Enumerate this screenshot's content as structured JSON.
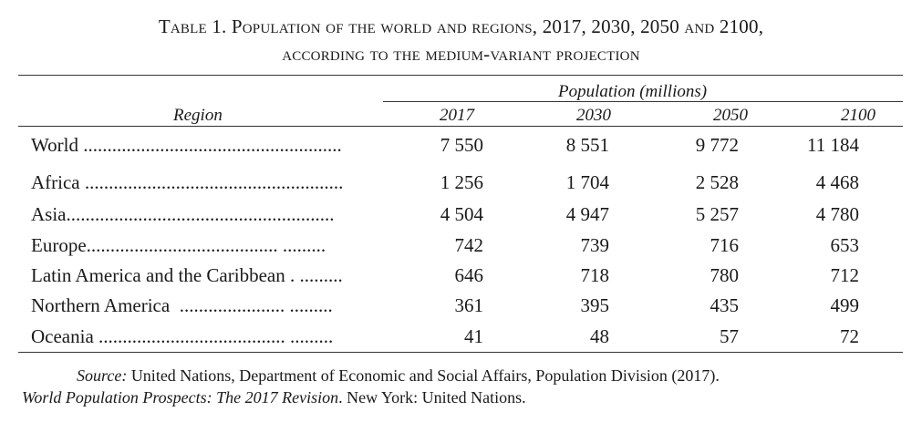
{
  "title": {
    "line1": "Table 1. Population of the world and regions, 2017, 2030, 2050 and 2100,",
    "line2": "according to the medium-variant projection"
  },
  "header": {
    "region_label": "Region",
    "population_label": "Population (millions)",
    "years": [
      "2017",
      "2030",
      "2050",
      "2100"
    ]
  },
  "rows": [
    {
      "region": "World",
      "dots": " ......................................................",
      "values": [
        "7 550",
        "8 551",
        "9 772",
        "11 184"
      ]
    },
    {
      "region": "Africa",
      "dots": " ......................................................",
      "values": [
        "1 256",
        "1 704",
        "2 528",
        "4 468"
      ]
    },
    {
      "region": "Asia",
      "dots": "........................................................",
      "values": [
        "4 504",
        "4 947",
        "5 257",
        "4 780"
      ]
    },
    {
      "region": "Europe",
      "dots": "........................................ .........",
      "values": [
        "742",
        "739",
        "716",
        "653"
      ]
    },
    {
      "region": "Latin America and the Caribbean",
      "dots": " . .........",
      "values": [
        "646",
        "718",
        "780",
        "712"
      ]
    },
    {
      "region": "Northern America",
      "dots": "  ...................... .........",
      "values": [
        "361",
        "395",
        "435",
        "499"
      ]
    },
    {
      "region": "Oceania",
      "dots": " ....................................... .........",
      "values": [
        "41",
        "48",
        "57",
        "72"
      ]
    }
  ],
  "source": {
    "line1_italic": "Source:",
    "line1_text": " United Nations, Department of Economic and Social Affairs, Population Division (2017).",
    "line2_italic": "World Population Prospects: The 2017 Revision",
    "line2_text": ". New York: United Nations."
  }
}
